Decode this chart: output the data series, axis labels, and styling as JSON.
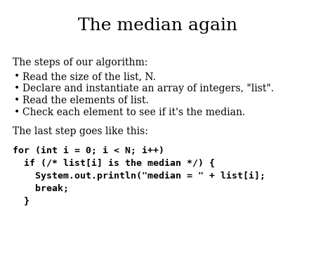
{
  "title": "The median again",
  "title_fontsize": 18,
  "title_font": "DejaVu Serif",
  "bg_color": "#ffffff",
  "text_color": "#000000",
  "body_fontsize": 10,
  "code_fontsize": 9.5,
  "intro_text": "The steps of our algorithm:",
  "bullets": [
    "Read the size of the list, N.",
    "Declare and instantiate an array of integers, \"list\".",
    "Read the elements of list.",
    "Check each element to see if it's the median."
  ],
  "transition_text": "The last step goes like this:",
  "code_lines": [
    "for (int i = 0; i < N; i++)",
    "  if (/* list[i] is the median */) {",
    "    System.out.println(\"median = \" + list[i];",
    "    break;",
    "  }"
  ]
}
